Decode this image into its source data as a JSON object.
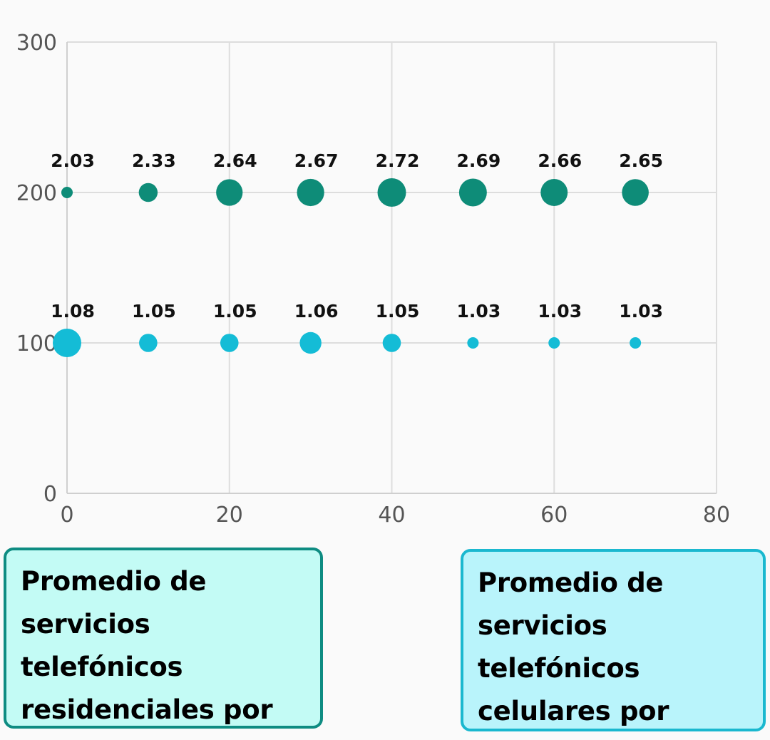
{
  "chart_data": {
    "type": "scatter",
    "xlim": [
      0,
      80
    ],
    "ylim": [
      0,
      300
    ],
    "x_ticks": [
      "0",
      "20",
      "40",
      "60",
      "80"
    ],
    "y_ticks": [
      "0",
      "100",
      "200",
      "300"
    ],
    "grid": true,
    "series": [
      {
        "name": "Promedio de servicios telefónicos residenciales por vivienda",
        "color": "#0e8c78",
        "x": [
          0,
          10,
          20,
          30,
          40,
          50,
          60,
          70
        ],
        "y": [
          200,
          200,
          200,
          200,
          200,
          200,
          200,
          200
        ],
        "labels": [
          "2.03",
          "2.33",
          "2.64",
          "2.67",
          "2.72",
          "2.69",
          "2.66",
          "2.65"
        ],
        "sizes": [
          2.03,
          2.33,
          2.64,
          2.67,
          2.72,
          2.69,
          2.66,
          2.65
        ]
      },
      {
        "name": "Promedio de servicios telefónicos celulares por vivienda",
        "color": "#14bcd6",
        "x": [
          0,
          10,
          20,
          30,
          40,
          50,
          60,
          70
        ],
        "y": [
          100,
          100,
          100,
          100,
          100,
          100,
          100,
          100
        ],
        "labels": [
          "1.08",
          "1.05",
          "1.05",
          "1.06",
          "1.05",
          "1.03",
          "1.03",
          "1.03"
        ],
        "sizes": [
          1.08,
          1.05,
          1.05,
          1.06,
          1.05,
          1.03,
          1.03,
          1.03
        ]
      }
    ]
  },
  "legend": {
    "residential": "Promedio de servicios telefónicos residenciales por vivienda",
    "cellular": "Promedio de servicios telefónicos celulares por vivienda"
  }
}
